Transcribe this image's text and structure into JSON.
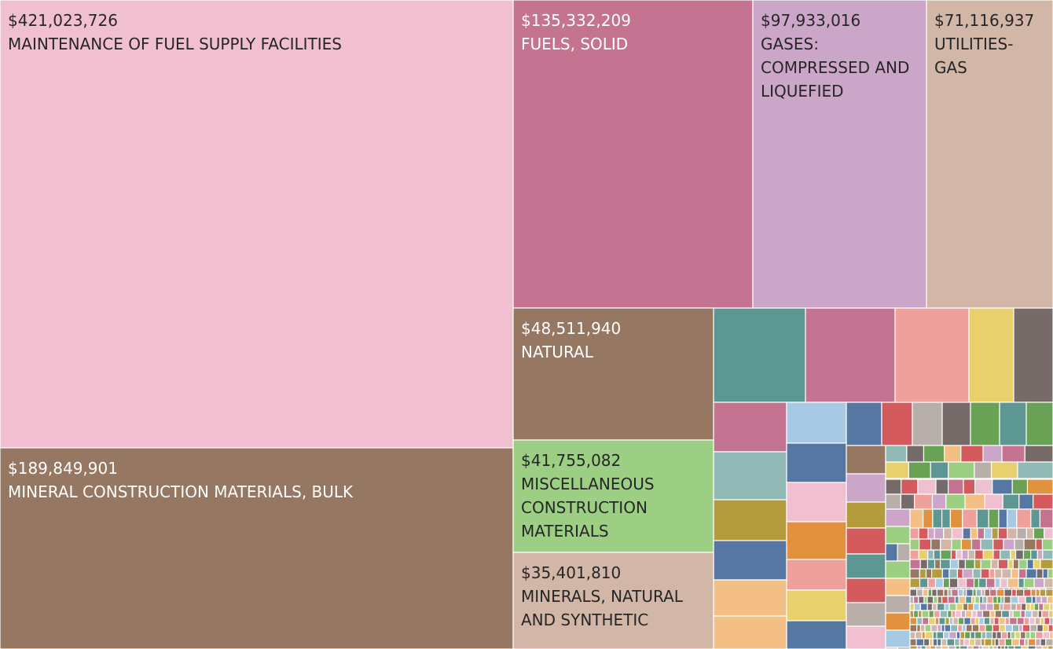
{
  "chart_data": {
    "type": "treemap",
    "title": "",
    "labeled_tiles": [
      {
        "id": "t1",
        "category": "MAINTENANCE OF FUEL SUPPLY FACILITIES",
        "value": 421023726,
        "value_text": "$421,023,726",
        "color": "#f1c0d0",
        "text_color": "#262626"
      },
      {
        "id": "t2",
        "category": "MINERAL CONSTRUCTION MATERIALS, BULK",
        "value": 189849901,
        "value_text": "$189,849,901",
        "color": "#957762",
        "text_color": "#ffffff"
      },
      {
        "id": "t3",
        "category": "FUELS, SOLID",
        "value": 135332209,
        "value_text": "$135,332,209",
        "color": "#c47490",
        "text_color": "#ffffff"
      },
      {
        "id": "t4",
        "category": "GASES: COMPRESSED AND LIQUEFIED",
        "value": 97933016,
        "value_text": "$97,933,016",
        "color": "#cba6c8",
        "text_color": "#262626"
      },
      {
        "id": "t5",
        "category": "UTILITIES- GAS",
        "value": 71116937,
        "value_text": "$71,116,937",
        "color": "#d2b6a8",
        "text_color": "#262626"
      },
      {
        "id": "t6",
        "category": "NATURAL",
        "value": 48511940,
        "value_text": "$48,511,940",
        "color": "#957762",
        "text_color": "#ffffff"
      },
      {
        "id": "t7",
        "category": "MISCELLANEOUS CONSTRUCTION MATERIALS",
        "value": 41755082,
        "value_text": "$41,755,082",
        "color": "#9ccf84",
        "text_color": "#262626"
      },
      {
        "id": "t8",
        "category": "MINERALS, NATURAL AND SYNTHETIC",
        "value": 35401810,
        "value_text": "$35,401,810",
        "color": "#d2b6a8",
        "text_color": "#262626"
      }
    ],
    "unlabeled_tile_colors": [
      "#5d9794",
      "#c47490",
      "#f0a09c",
      "#e8d06e",
      "#776b6a",
      "#c47490",
      "#a6c9e4",
      "#5777a3",
      "#d55a5e",
      "#b8afaa",
      "#776b6a",
      "#6aa255",
      "#5d9794",
      "#6aa255",
      "#91bab6",
      "#5777a3",
      "#b49b3c",
      "#f1c0d0",
      "#957762",
      "#cba6c8",
      "#b49b3c",
      "#e2923f",
      "#d55a5e",
      "#5777a3",
      "#f0a09c",
      "#5d9794",
      "#e8d06e",
      "#d55a5e",
      "#b8afaa",
      "#f4bf85",
      "#5777a3",
      "#f4bf85",
      "#f1c0d0"
    ],
    "palette": [
      "#5d9794",
      "#c47490",
      "#f0a09c",
      "#e8d06e",
      "#776b6a",
      "#a6c9e4",
      "#5777a3",
      "#d55a5e",
      "#b8afaa",
      "#6aa255",
      "#91bab6",
      "#b49b3c",
      "#f1c0d0",
      "#957762",
      "#cba6c8",
      "#e2923f",
      "#f4bf85",
      "#d2b6a8",
      "#9ccf84"
    ]
  }
}
